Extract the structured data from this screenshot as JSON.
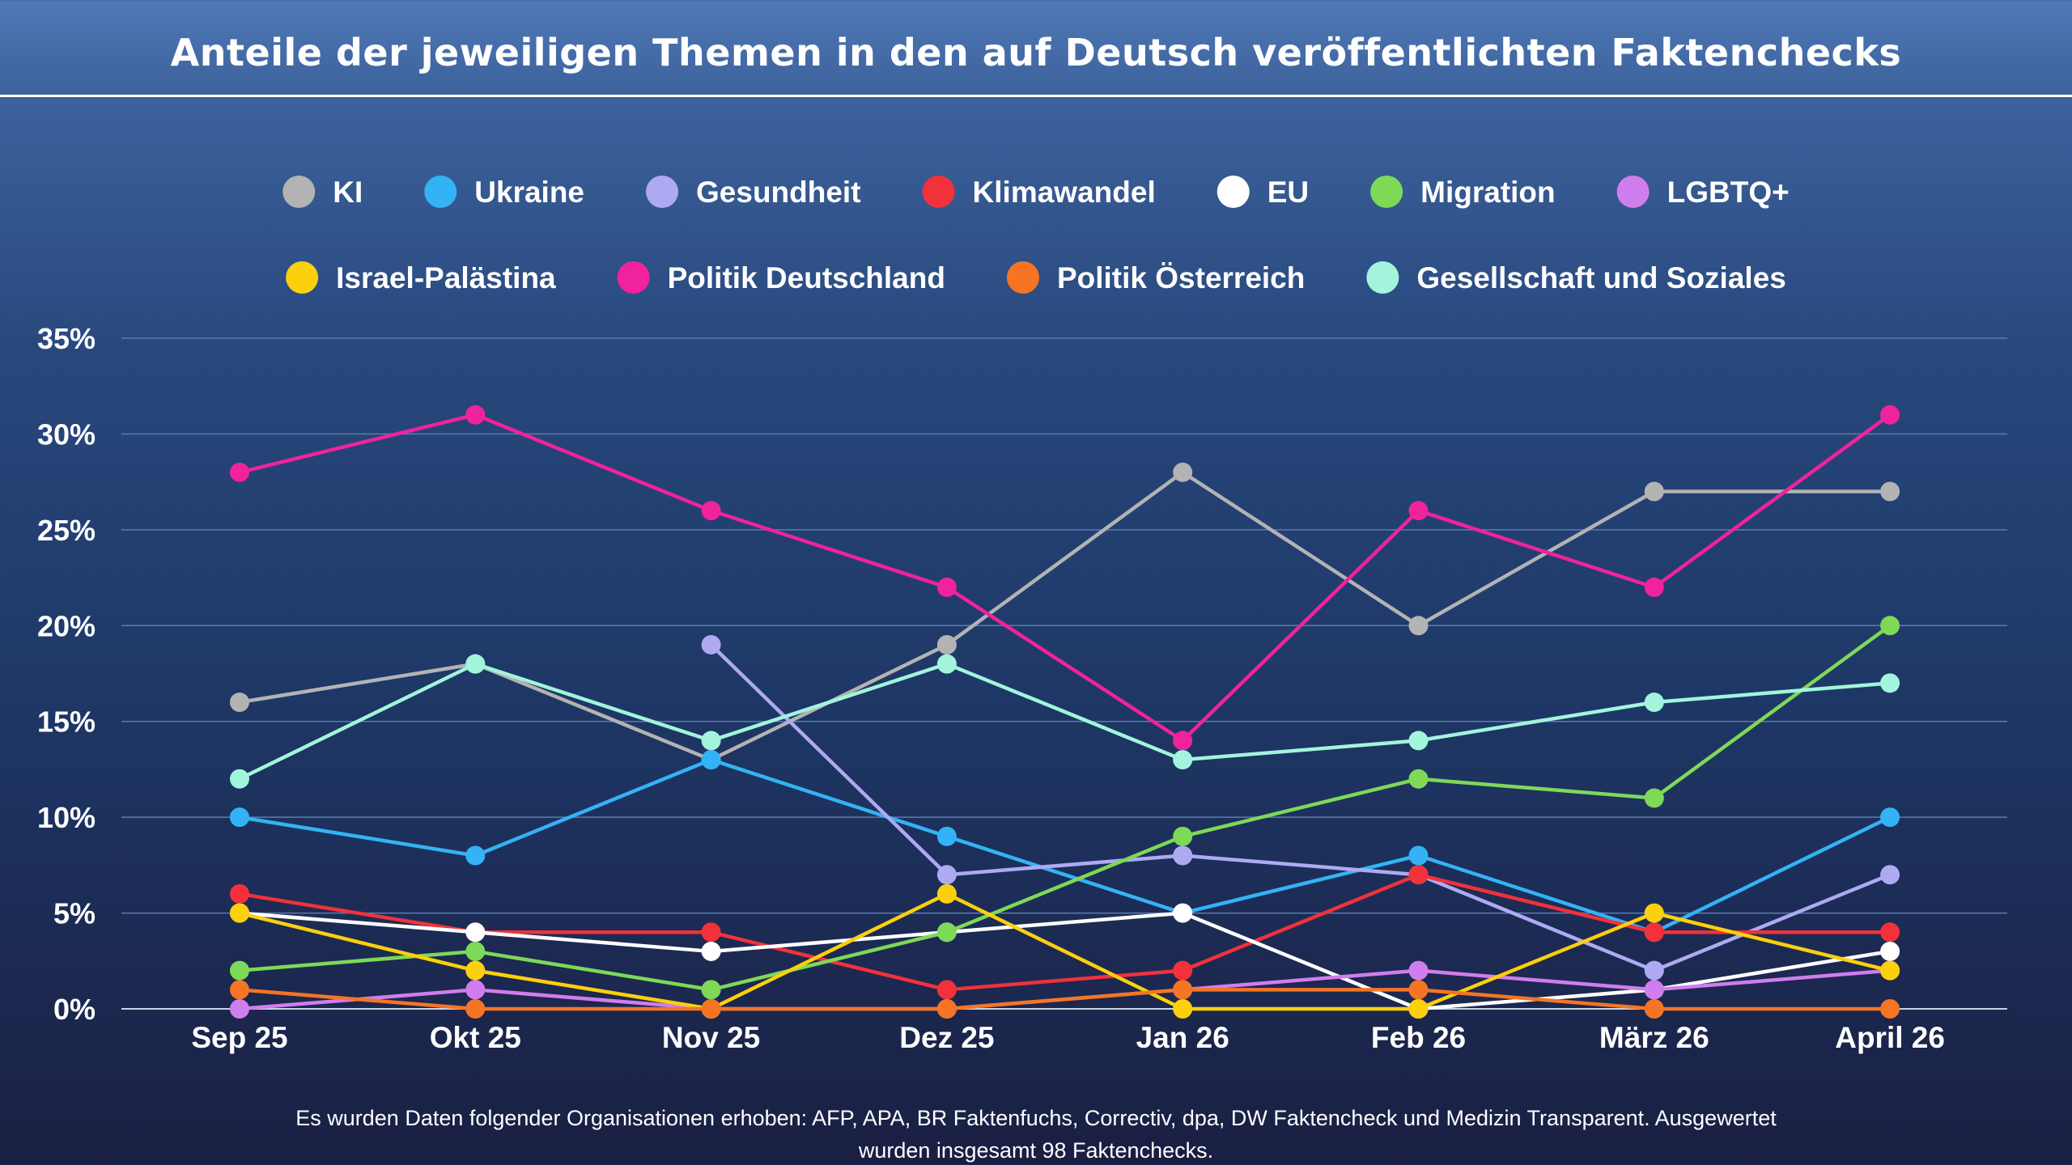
{
  "title": "Anteile der jeweiligen Themen in den auf Deutsch veröffentlichten Faktenchecks",
  "footnote": {
    "line1": "Es wurden Daten folgender Organisationen erhoben: AFP, APA, BR Faktenfuchs, Correctiv, dpa, DW Faktencheck und Medizin Transparent. Ausgewertet",
    "line2": "wurden insgesamt 98 Faktenchecks."
  },
  "chart_data": {
    "type": "line",
    "title": "Anteile der jeweiligen Themen in den auf Deutsch veröffentlichten Faktenchecks",
    "xlabel": "",
    "ylabel": "",
    "categories": [
      "Sep 25",
      "Okt 25",
      "Nov 25",
      "Dez 25",
      "Jan 26",
      "Feb 26",
      "März 26",
      "April 26"
    ],
    "ylim": [
      0,
      35
    ],
    "yticks": [
      0,
      5,
      10,
      15,
      20,
      25,
      30,
      35
    ],
    "ytick_labels": [
      "0%",
      "5%",
      "10%",
      "15%",
      "20%",
      "25%",
      "30%",
      "35%"
    ],
    "grid": true,
    "legend_position": "top",
    "series": [
      {
        "name": "KI",
        "color": "#b3b3b3",
        "values": [
          16,
          18,
          13,
          19,
          28,
          20,
          27,
          27
        ]
      },
      {
        "name": "Ukraine",
        "color": "#33b3f5",
        "values": [
          10,
          8,
          13,
          9,
          5,
          8,
          4,
          10
        ]
      },
      {
        "name": "Gesundheit",
        "color": "#aeaaf2",
        "values": [
          null,
          null,
          19,
          7,
          8,
          7,
          2,
          7
        ]
      },
      {
        "name": "Klimawandel",
        "color": "#f2313b",
        "values": [
          6,
          4,
          4,
          1,
          2,
          7,
          4,
          4
        ]
      },
      {
        "name": "EU",
        "color": "#ffffff",
        "values": [
          5,
          4,
          3,
          4,
          5,
          0,
          1,
          3
        ]
      },
      {
        "name": "Migration",
        "color": "#7ed957",
        "values": [
          2,
          3,
          1,
          4,
          9,
          12,
          11,
          20
        ]
      },
      {
        "name": "LGBTQ+",
        "color": "#d07ded",
        "values": [
          0,
          1,
          0,
          0,
          1,
          2,
          1,
          2
        ]
      },
      {
        "name": "Israel-Palästina",
        "color": "#fcd00c",
        "values": [
          5,
          2,
          0,
          6,
          0,
          0,
          5,
          2
        ]
      },
      {
        "name": "Politik Deutschland",
        "color": "#f0239c",
        "values": [
          28,
          31,
          26,
          22,
          14,
          26,
          22,
          31
        ]
      },
      {
        "name": "Politik Österreich",
        "color": "#f57524",
        "values": [
          1,
          0,
          0,
          0,
          1,
          1,
          0,
          0
        ]
      },
      {
        "name": "Gesellschaft und Soziales",
        "color": "#a2f5dc",
        "values": [
          12,
          18,
          14,
          18,
          13,
          14,
          16,
          17
        ]
      }
    ]
  }
}
